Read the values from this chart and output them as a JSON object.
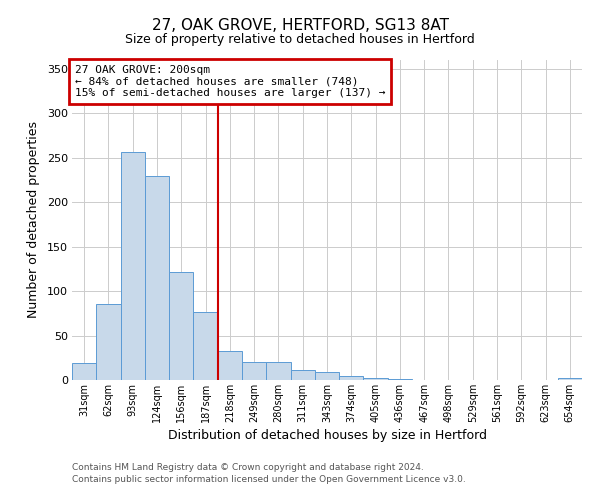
{
  "title": "27, OAK GROVE, HERTFORD, SG13 8AT",
  "subtitle": "Size of property relative to detached houses in Hertford",
  "xlabel": "Distribution of detached houses by size in Hertford",
  "ylabel": "Number of detached properties",
  "bar_labels": [
    "31sqm",
    "62sqm",
    "93sqm",
    "124sqm",
    "156sqm",
    "187sqm",
    "218sqm",
    "249sqm",
    "280sqm",
    "311sqm",
    "343sqm",
    "374sqm",
    "405sqm",
    "436sqm",
    "467sqm",
    "498sqm",
    "529sqm",
    "561sqm",
    "592sqm",
    "623sqm",
    "654sqm"
  ],
  "bar_values": [
    19,
    86,
    257,
    230,
    122,
    77,
    33,
    20,
    20,
    11,
    9,
    4,
    2,
    1,
    0,
    0,
    0,
    0,
    0,
    0,
    2
  ],
  "bar_color": "#c8d9ea",
  "bar_edgecolor": "#5b9bd5",
  "vline_x": 5.5,
  "vline_color": "#cc0000",
  "annotation_line1": "27 OAK GROVE: 200sqm",
  "annotation_line2": "← 84% of detached houses are smaller (748)",
  "annotation_line3": "15% of semi-detached houses are larger (137) →",
  "annotation_box_color": "#cc0000",
  "ylim": [
    0,
    360
  ],
  "yticks": [
    0,
    50,
    100,
    150,
    200,
    250,
    300,
    350
  ],
  "footer1": "Contains HM Land Registry data © Crown copyright and database right 2024.",
  "footer2": "Contains public sector information licensed under the Open Government Licence v3.0.",
  "background_color": "#ffffff",
  "grid_color": "#cccccc"
}
